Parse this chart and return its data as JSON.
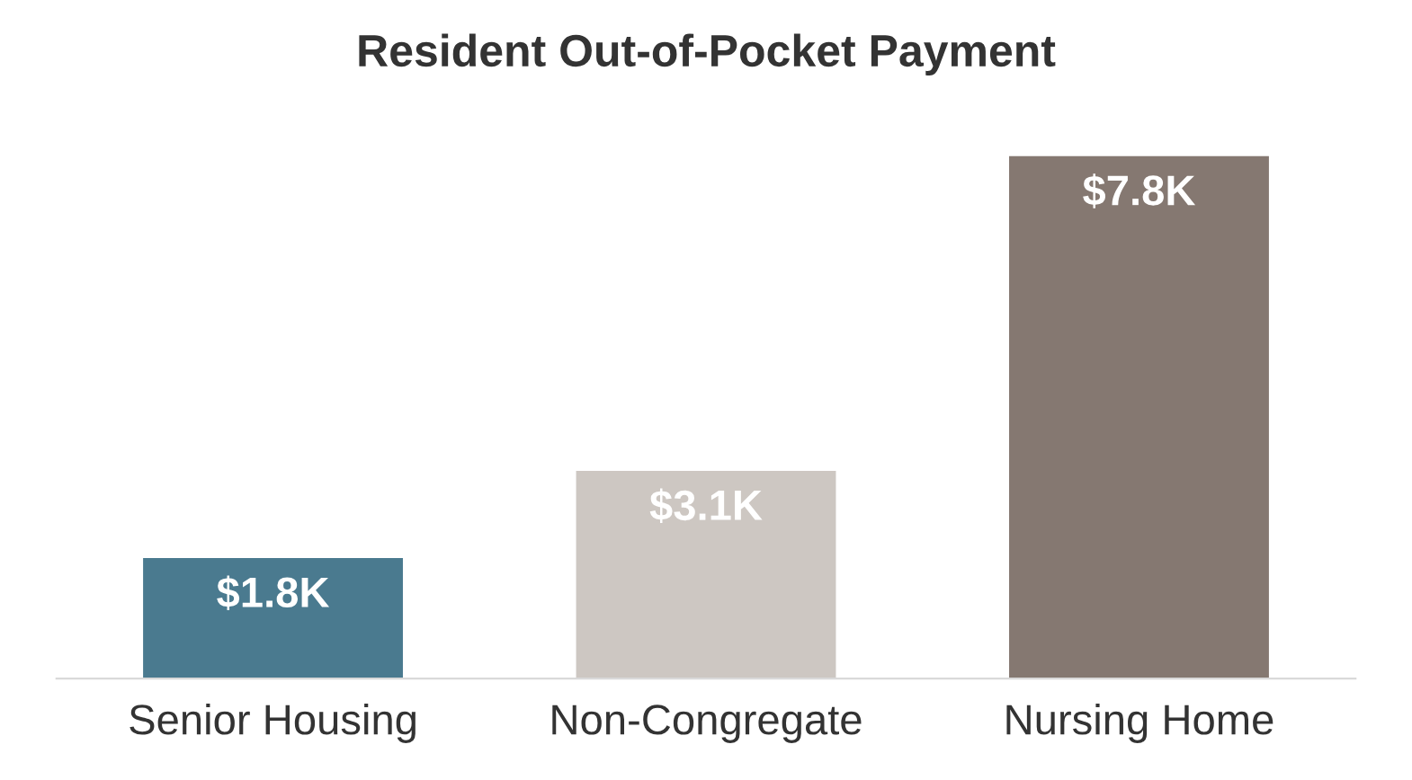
{
  "chart_data": {
    "type": "bar",
    "title": "Resident Out-of-Pocket Payment",
    "categories": [
      "Senior Housing",
      "Non-Congregate",
      "Nursing Home"
    ],
    "values": [
      1.8,
      3.1,
      7.8
    ],
    "value_labels": [
      "$1.8K",
      "$3.1K",
      "$7.8K"
    ],
    "colors": [
      "#4a7a8f",
      "#cdc7c2",
      "#857871"
    ],
    "grid": false,
    "legend": false
  }
}
